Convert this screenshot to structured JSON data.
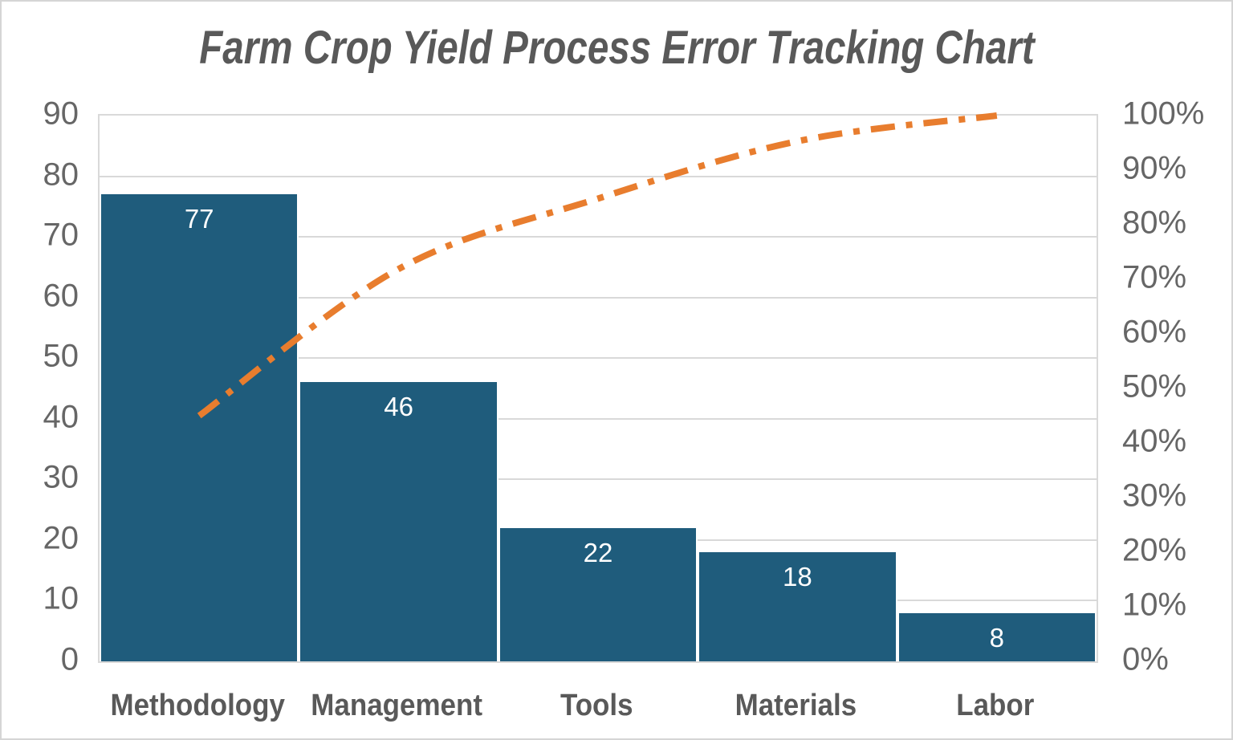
{
  "title": "Farm Crop Yield Process Error Tracking Chart",
  "chart_data": {
    "type": "bar",
    "subtype": "pareto-bar-with-cumulative-line",
    "title": "Farm Crop Yield Process Error Tracking Chart",
    "categories": [
      "Methodology",
      "Management",
      "Tools",
      "Materials",
      "Labor"
    ],
    "series": [
      {
        "name": "error-count-bars",
        "type": "bar",
        "values": [
          77,
          46,
          22,
          18,
          8
        ],
        "axis": "left"
      },
      {
        "name": "cumulative-percent-line",
        "type": "line",
        "values": [
          45.0,
          71.9,
          84.8,
          95.3,
          100.0
        ],
        "axis": "right",
        "style": "smooth-dash-dot"
      }
    ],
    "bar_labels": [
      "77",
      "46",
      "22",
      "18",
      "8"
    ],
    "left_axis": {
      "ticks": [
        "90",
        "80",
        "70",
        "60",
        "50",
        "40",
        "30",
        "20",
        "10",
        "0"
      ],
      "min": 0,
      "max": 90
    },
    "right_axis": {
      "ticks": [
        "100%",
        "90%",
        "80%",
        "70%",
        "60%",
        "50%",
        "40%",
        "30%",
        "20%",
        "10%",
        "0%"
      ],
      "min": 0,
      "max": 100
    },
    "xlabel": "",
    "ylabel": "",
    "grid": "horizontal",
    "legend": "none",
    "colors": {
      "bar": "#1f5c7c",
      "line": "#e87d2e",
      "grid": "#d9d9d9",
      "title_text": "#595959",
      "tick_text": "#666666",
      "category_text": "#595959",
      "bar_label_text": "#ffffff",
      "background": "#ffffff",
      "frame_border": "#d5d5d5"
    }
  }
}
